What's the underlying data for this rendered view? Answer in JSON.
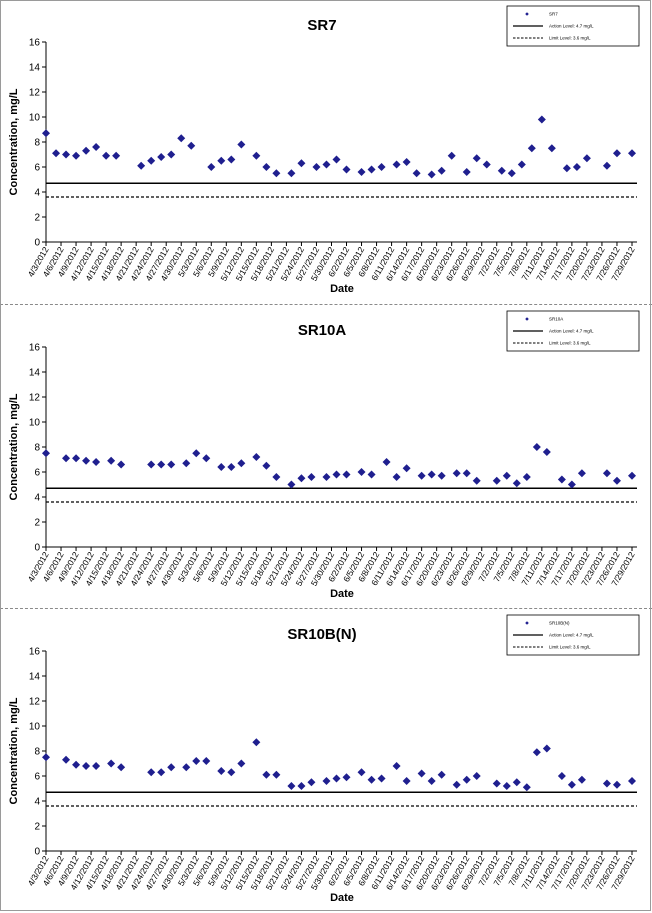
{
  "chart_data": [
    {
      "type": "scatter",
      "title": "SR7",
      "xlabel": "Date",
      "ylabel": "Concentration, mg/L",
      "ylim": [
        0,
        16
      ],
      "yticks": [
        0,
        2,
        4,
        6,
        8,
        10,
        12,
        14,
        16
      ],
      "xlim": [
        "4/3/2012",
        "7/30/2012"
      ],
      "xticks": [
        "4/3/2012",
        "4/6/2012",
        "4/9/2012",
        "4/12/2012",
        "4/15/2012",
        "4/18/2012",
        "4/21/2012",
        "4/24/2012",
        "4/27/2012",
        "4/30/2012",
        "5/3/2012",
        "5/6/2012",
        "5/9/2012",
        "5/12/2012",
        "5/15/2012",
        "5/18/2012",
        "5/21/2012",
        "5/24/2012",
        "5/27/2012",
        "5/30/2012",
        "6/2/2012",
        "6/5/2012",
        "6/8/2012",
        "6/11/2012",
        "6/14/2012",
        "6/17/2012",
        "6/20/2012",
        "6/23/2012",
        "6/26/2012",
        "6/29/2012",
        "7/2/2012",
        "7/5/2012",
        "7/8/2012",
        "7/11/2012",
        "7/14/2012",
        "7/17/2012",
        "7/20/2012",
        "7/23/2012",
        "7/26/2012",
        "7/29/2012"
      ],
      "grid": false,
      "legend_position": "top-right",
      "legend": [
        "SR7",
        "Action Level: 4.7 mg/L",
        "Limit Level: 3.6 mg/L"
      ],
      "series": [
        {
          "name": "SR7",
          "color": "#1f1f8f",
          "marker": "diamond",
          "x": [
            "4/3/2012",
            "4/5/2012",
            "4/7/2012",
            "4/9/2012",
            "4/11/2012",
            "4/13/2012",
            "4/15/2012",
            "4/17/2012",
            "4/22/2012",
            "4/24/2012",
            "4/26/2012",
            "4/28/2012",
            "4/30/2012",
            "5/2/2012",
            "5/6/2012",
            "5/8/2012",
            "5/10/2012",
            "5/12/2012",
            "5/15/2012",
            "5/17/2012",
            "5/19/2012",
            "5/22/2012",
            "5/24/2012",
            "5/27/2012",
            "5/29/2012",
            "5/31/2012",
            "6/2/2012",
            "6/5/2012",
            "6/7/2012",
            "6/9/2012",
            "6/12/2012",
            "6/14/2012",
            "6/16/2012",
            "6/19/2012",
            "6/21/2012",
            "6/23/2012",
            "6/26/2012",
            "6/28/2012",
            "6/30/2012",
            "7/3/2012",
            "7/5/2012",
            "7/7/2012",
            "7/9/2012",
            "7/11/2012",
            "7/13/2012",
            "7/16/2012",
            "7/18/2012",
            "7/20/2012",
            "7/24/2012",
            "7/26/2012",
            "7/29/2012"
          ],
          "y": [
            8.7,
            7.1,
            7.0,
            6.9,
            7.3,
            7.6,
            6.9,
            6.9,
            6.1,
            6.5,
            6.8,
            7.0,
            8.3,
            7.7,
            6.0,
            6.5,
            6.6,
            7.8,
            6.9,
            6.0,
            5.5,
            5.5,
            6.3,
            6.0,
            6.2,
            6.6,
            5.8,
            5.6,
            5.8,
            6.0,
            6.2,
            6.4,
            5.5,
            5.4,
            5.7,
            6.9,
            5.6,
            6.7,
            6.2,
            5.7,
            5.5,
            6.2,
            7.5,
            9.8,
            7.5,
            5.9,
            6.0,
            6.7,
            6.1,
            7.1,
            7.1
          ]
        },
        {
          "name": "Action Level: 4.7 mg/L",
          "style": "solid",
          "value": 4.7
        },
        {
          "name": "Limit Level: 3.6 mg/L",
          "style": "dashed",
          "value": 3.6
        }
      ]
    },
    {
      "type": "scatter",
      "title": "SR10A",
      "xlabel": "Date",
      "ylabel": "Concentration, mg/L",
      "ylim": [
        0,
        16
      ],
      "yticks": [
        0,
        2,
        4,
        6,
        8,
        10,
        12,
        14,
        16
      ],
      "xlim": [
        "4/3/2012",
        "7/30/2012"
      ],
      "xticks": [
        "4/3/2012",
        "4/6/2012",
        "4/9/2012",
        "4/12/2012",
        "4/15/2012",
        "4/18/2012",
        "4/21/2012",
        "4/24/2012",
        "4/27/2012",
        "4/30/2012",
        "5/3/2012",
        "5/6/2012",
        "5/9/2012",
        "5/12/2012",
        "5/15/2012",
        "5/18/2012",
        "5/21/2012",
        "5/24/2012",
        "5/27/2012",
        "5/30/2012",
        "6/2/2012",
        "6/5/2012",
        "6/8/2012",
        "6/11/2012",
        "6/14/2012",
        "6/17/2012",
        "6/20/2012",
        "6/23/2012",
        "6/26/2012",
        "6/29/2012",
        "7/2/2012",
        "7/5/2012",
        "7/8/2012",
        "7/11/2012",
        "7/14/2012",
        "7/17/2012",
        "7/20/2012",
        "7/23/2012",
        "7/26/2012",
        "7/29/2012"
      ],
      "grid": false,
      "legend_position": "top-right",
      "legend": [
        "SR10A",
        "Action Level: 4.7 mg/L",
        "Limit Level: 3.6 mg/L"
      ],
      "series": [
        {
          "name": "SR10A",
          "color": "#1f1f8f",
          "marker": "diamond",
          "x": [
            "4/3/2012",
            "4/7/2012",
            "4/9/2012",
            "4/11/2012",
            "4/13/2012",
            "4/16/2012",
            "4/18/2012",
            "4/24/2012",
            "4/26/2012",
            "4/28/2012",
            "5/1/2012",
            "5/3/2012",
            "5/5/2012",
            "5/8/2012",
            "5/10/2012",
            "5/12/2012",
            "5/15/2012",
            "5/17/2012",
            "5/19/2012",
            "5/22/2012",
            "5/24/2012",
            "5/26/2012",
            "5/29/2012",
            "5/31/2012",
            "6/2/2012",
            "6/5/2012",
            "6/7/2012",
            "6/10/2012",
            "6/12/2012",
            "6/14/2012",
            "6/17/2012",
            "6/19/2012",
            "6/21/2012",
            "6/24/2012",
            "6/26/2012",
            "6/28/2012",
            "7/2/2012",
            "7/4/2012",
            "7/6/2012",
            "7/8/2012",
            "7/10/2012",
            "7/12/2012",
            "7/15/2012",
            "7/17/2012",
            "7/19/2012",
            "7/24/2012",
            "7/26/2012",
            "7/29/2012"
          ],
          "y": [
            7.5,
            7.1,
            7.1,
            6.9,
            6.8,
            6.9,
            6.6,
            6.6,
            6.6,
            6.6,
            6.7,
            7.5,
            7.1,
            6.4,
            6.4,
            6.7,
            7.2,
            6.5,
            5.6,
            5.0,
            5.5,
            5.6,
            5.6,
            5.8,
            5.8,
            6.0,
            5.8,
            6.8,
            5.6,
            6.3,
            5.7,
            5.8,
            5.7,
            5.9,
            5.9,
            5.3,
            5.3,
            5.7,
            5.1,
            5.6,
            8.0,
            7.6,
            5.4,
            5.0,
            5.9,
            5.9,
            5.3,
            5.7
          ]
        },
        {
          "name": "Action Level: 4.7 mg/L",
          "style": "solid",
          "value": 4.7
        },
        {
          "name": "Limit Level: 3.6 mg/L",
          "style": "dashed",
          "value": 3.6
        }
      ]
    },
    {
      "type": "scatter",
      "title": "SR10B(N)",
      "xlabel": "Date",
      "ylabel": "Concentration, mg/L",
      "ylim": [
        0,
        16
      ],
      "yticks": [
        0,
        2,
        4,
        6,
        8,
        10,
        12,
        14,
        16
      ],
      "xlim": [
        "4/3/2012",
        "7/30/2012"
      ],
      "xticks": [
        "4/3/2012",
        "4/6/2012",
        "4/9/2012",
        "4/12/2012",
        "4/15/2012",
        "4/18/2012",
        "4/21/2012",
        "4/24/2012",
        "4/27/2012",
        "4/30/2012",
        "5/3/2012",
        "5/6/2012",
        "5/9/2012",
        "5/12/2012",
        "5/15/2012",
        "5/18/2012",
        "5/21/2012",
        "5/24/2012",
        "5/27/2012",
        "5/30/2012",
        "6/2/2012",
        "6/5/2012",
        "6/8/2012",
        "6/11/2012",
        "6/14/2012",
        "6/17/2012",
        "6/20/2012",
        "6/23/2012",
        "6/26/2012",
        "6/29/2012",
        "7/2/2012",
        "7/5/2012",
        "7/8/2012",
        "7/11/2012",
        "7/14/2012",
        "7/17/2012",
        "7/20/2012",
        "7/23/2012",
        "7/26/2012",
        "7/29/2012"
      ],
      "grid": false,
      "legend_position": "top-right",
      "legend": [
        "SR10B(N)",
        "Action Level: 4.7 mg/L",
        "Limit Level: 3.6 mg/L"
      ],
      "series": [
        {
          "name": "SR10B(N)",
          "color": "#1f1f8f",
          "marker": "diamond",
          "x": [
            "4/3/2012",
            "4/7/2012",
            "4/9/2012",
            "4/11/2012",
            "4/13/2012",
            "4/16/2012",
            "4/18/2012",
            "4/24/2012",
            "4/26/2012",
            "4/28/2012",
            "5/1/2012",
            "5/3/2012",
            "5/5/2012",
            "5/8/2012",
            "5/10/2012",
            "5/12/2012",
            "5/15/2012",
            "5/17/2012",
            "5/19/2012",
            "5/22/2012",
            "5/24/2012",
            "5/26/2012",
            "5/29/2012",
            "5/31/2012",
            "6/2/2012",
            "6/5/2012",
            "6/7/2012",
            "6/9/2012",
            "6/12/2012",
            "6/14/2012",
            "6/17/2012",
            "6/19/2012",
            "6/21/2012",
            "6/24/2012",
            "6/26/2012",
            "6/28/2012",
            "7/2/2012",
            "7/4/2012",
            "7/6/2012",
            "7/8/2012",
            "7/10/2012",
            "7/12/2012",
            "7/15/2012",
            "7/17/2012",
            "7/19/2012",
            "7/24/2012",
            "7/26/2012",
            "7/29/2012"
          ],
          "y": [
            7.5,
            7.3,
            6.9,
            6.8,
            6.8,
            7.0,
            6.7,
            6.3,
            6.3,
            6.7,
            6.7,
            7.2,
            7.2,
            6.4,
            6.3,
            7.0,
            8.7,
            6.1,
            6.1,
            5.2,
            5.2,
            5.5,
            5.6,
            5.8,
            5.9,
            6.3,
            5.7,
            5.8,
            6.8,
            5.6,
            6.2,
            5.6,
            6.1,
            5.3,
            5.7,
            6.0,
            5.4,
            5.2,
            5.5,
            5.1,
            7.9,
            8.2,
            6.0,
            5.3,
            5.7,
            5.4,
            5.3,
            5.6
          ]
        },
        {
          "name": "Action Level: 4.7 mg/L",
          "style": "solid",
          "value": 4.7
        },
        {
          "name": "Limit Level: 3.6 mg/L",
          "style": "dashed",
          "value": 3.6
        }
      ]
    }
  ]
}
